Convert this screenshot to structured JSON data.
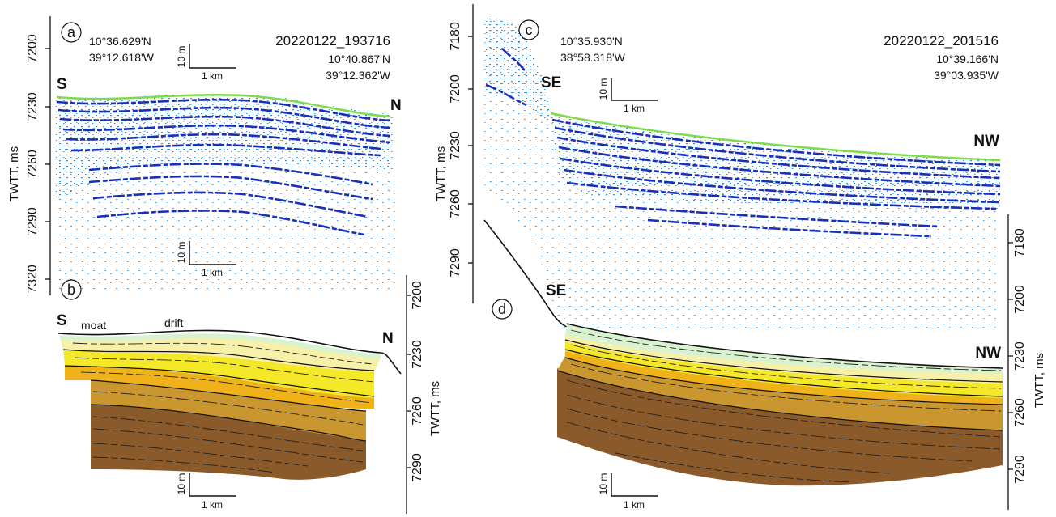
{
  "panels": {
    "a": {
      "letter": "a",
      "start_coord": [
        "10°36.629'N",
        "39°12.618'W"
      ],
      "profile_id": "20220122_193716",
      "end_coord": [
        "10°40.867'N",
        "39°12.362'W"
      ],
      "dir_left": "S",
      "dir_right": "N",
      "y_ticks": [
        "7200",
        "7230",
        "7260",
        "7290",
        "7320"
      ],
      "y_axis_title": "TWTT, ms"
    },
    "b": {
      "letter": "b",
      "dir_left": "S",
      "dir_right": "N",
      "label_moat": "moat",
      "label_drift": "drift",
      "y_ticks": [
        "7200",
        "7230",
        "7260",
        "7290"
      ],
      "y_axis_title": "TWTT, ms"
    },
    "c": {
      "letter": "c",
      "start_coord": [
        "10°35.930'N",
        "38°58.318'W"
      ],
      "profile_id": "20220122_201516",
      "end_coord": [
        "10°39.166'N",
        "39°03.935'W"
      ],
      "dir_left": "SE",
      "dir_right": "NW",
      "y_ticks": [
        "7180",
        "7200",
        "7230",
        "7260",
        "7290"
      ],
      "y_axis_title": "TWTT, ms"
    },
    "d": {
      "letter": "d",
      "dir_left": "SE",
      "dir_right": "NW",
      "y_ticks": [
        "7180",
        "7200",
        "7230",
        "7260",
        "7290"
      ],
      "y_axis_title": "TWTT, ms"
    }
  },
  "scale_bar": {
    "vertical": "10 m",
    "horizontal": "1 km"
  },
  "colors": {
    "seismic_dark": "#1a2fb8",
    "seismic_light": "#2b8fe0",
    "seafloor_green": "#7ddc4a",
    "unit_pale_green": "#d9f2cf",
    "unit_pale_yellow": "#f7f0a8",
    "unit_yellow": "#f5e829",
    "unit_orange": "#efb21a",
    "unit_tan": "#c9962f",
    "unit_brown": "#8b5a2b"
  }
}
